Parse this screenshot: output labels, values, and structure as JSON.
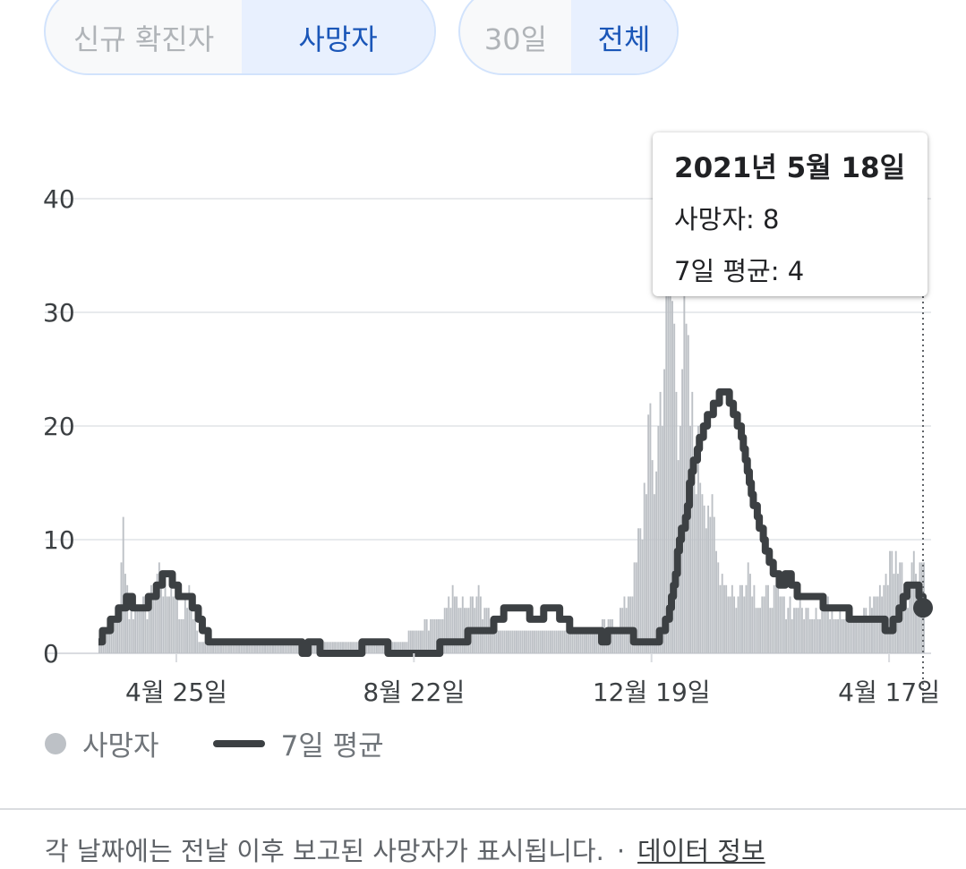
{
  "metric_toggle": {
    "options": [
      "신규 확진자",
      "사망자"
    ],
    "selected": "사망자"
  },
  "range_toggle": {
    "options": [
      "30일",
      "전체"
    ],
    "selected": "전체"
  },
  "tooltip": {
    "date": "2021년 5월 18일",
    "deaths": "사망자: 8",
    "avg": "7일 평균: 4"
  },
  "legend": {
    "bar_label": "사망자",
    "line_label": "7일 평균"
  },
  "footnote": {
    "text": "각 날짜에는 전날 이후 보고된 사망자가 표시됩니다.",
    "separator": "·",
    "link": "데이터 정보"
  },
  "colors": {
    "bar": "#bdc1c6",
    "line": "#3c4043",
    "grid": "#e8eaed",
    "accent": "#1a56b8"
  },
  "chart_data": {
    "type": "bar",
    "ylim": [
      0,
      40
    ],
    "yticks": [
      0,
      10,
      20,
      30,
      40
    ],
    "x_tick_labels": [
      "4월 25일",
      "8월 22일",
      "12월 19일",
      "4월 17일"
    ],
    "x_tick_days": [
      39,
      158,
      277,
      396
    ],
    "days_total": 427,
    "series": [
      {
        "name": "사망자",
        "type": "bar",
        "anchors": [
          [
            0,
            1
          ],
          [
            5,
            2
          ],
          [
            10,
            4
          ],
          [
            12,
            11
          ],
          [
            15,
            3
          ],
          [
            20,
            5
          ],
          [
            25,
            4
          ],
          [
            30,
            8
          ],
          [
            33,
            5
          ],
          [
            38,
            6
          ],
          [
            40,
            3
          ],
          [
            45,
            5
          ],
          [
            50,
            1
          ],
          [
            60,
            1
          ],
          [
            70,
            1
          ],
          [
            80,
            1
          ],
          [
            95,
            1
          ],
          [
            105,
            1
          ],
          [
            115,
            1
          ],
          [
            130,
            1
          ],
          [
            140,
            1
          ],
          [
            150,
            1
          ],
          [
            160,
            2
          ],
          [
            170,
            3
          ],
          [
            178,
            5
          ],
          [
            185,
            4
          ],
          [
            190,
            5
          ],
          [
            200,
            2
          ],
          [
            210,
            2
          ],
          [
            220,
            2
          ],
          [
            230,
            2
          ],
          [
            240,
            2
          ],
          [
            250,
            2
          ],
          [
            260,
            3
          ],
          [
            268,
            7
          ],
          [
            272,
            12
          ],
          [
            275,
            20
          ],
          [
            278,
            15
          ],
          [
            282,
            25
          ],
          [
            286,
            35
          ],
          [
            290,
            22
          ],
          [
            293,
            30
          ],
          [
            296,
            21
          ],
          [
            300,
            17
          ],
          [
            305,
            14
          ],
          [
            310,
            8
          ],
          [
            315,
            6
          ],
          [
            320,
            5
          ],
          [
            325,
            8
          ],
          [
            330,
            5
          ],
          [
            340,
            5
          ],
          [
            350,
            4
          ],
          [
            360,
            4
          ],
          [
            370,
            4
          ],
          [
            380,
            3
          ],
          [
            390,
            5
          ],
          [
            396,
            8
          ],
          [
            400,
            9
          ],
          [
            405,
            5
          ],
          [
            407,
            8
          ]
        ]
      },
      {
        "name": "7일 평균",
        "type": "line",
        "anchors": [
          [
            0,
            1
          ],
          [
            3,
            2
          ],
          [
            8,
            3
          ],
          [
            12,
            4
          ],
          [
            15,
            5
          ],
          [
            18,
            4
          ],
          [
            22,
            4
          ],
          [
            27,
            5
          ],
          [
            30,
            6
          ],
          [
            34,
            7
          ],
          [
            38,
            6
          ],
          [
            40,
            5
          ],
          [
            45,
            5
          ],
          [
            48,
            4
          ],
          [
            52,
            2
          ],
          [
            56,
            1
          ],
          [
            100,
            1
          ],
          [
            102,
            0
          ],
          [
            108,
            1
          ],
          [
            113,
            0
          ],
          [
            125,
            0
          ],
          [
            138,
            1
          ],
          [
            150,
            0
          ],
          [
            170,
            0
          ],
          [
            172,
            1
          ],
          [
            183,
            1
          ],
          [
            187,
            2
          ],
          [
            195,
            2
          ],
          [
            200,
            3
          ],
          [
            205,
            4
          ],
          [
            212,
            4
          ],
          [
            218,
            3
          ],
          [
            228,
            4
          ],
          [
            232,
            3
          ],
          [
            238,
            2
          ],
          [
            250,
            2
          ],
          [
            252,
            1
          ],
          [
            257,
            2
          ],
          [
            266,
            2
          ],
          [
            268,
            1
          ],
          [
            280,
            1
          ],
          [
            282,
            2
          ],
          [
            285,
            3
          ],
          [
            288,
            6
          ],
          [
            291,
            10
          ],
          [
            294,
            12
          ],
          [
            297,
            16
          ],
          [
            300,
            18
          ],
          [
            303,
            20
          ],
          [
            306,
            21
          ],
          [
            309,
            22
          ],
          [
            312,
            23
          ],
          [
            315,
            23
          ],
          [
            318,
            21
          ],
          [
            321,
            20
          ],
          [
            324,
            17
          ],
          [
            327,
            14
          ],
          [
            330,
            12
          ],
          [
            333,
            10
          ],
          [
            336,
            8
          ],
          [
            339,
            7
          ],
          [
            342,
            6
          ],
          [
            345,
            7
          ],
          [
            348,
            6
          ],
          [
            351,
            5
          ],
          [
            355,
            5
          ],
          [
            360,
            5
          ],
          [
            365,
            4
          ],
          [
            372,
            4
          ],
          [
            378,
            3
          ],
          [
            385,
            3
          ],
          [
            392,
            3
          ],
          [
            395,
            2
          ],
          [
            400,
            3
          ],
          [
            403,
            5
          ],
          [
            406,
            6
          ],
          [
            409,
            6
          ],
          [
            411,
            5
          ],
          [
            413,
            4
          ]
        ]
      }
    ],
    "highlight": {
      "day": 413,
      "value": 4
    }
  }
}
